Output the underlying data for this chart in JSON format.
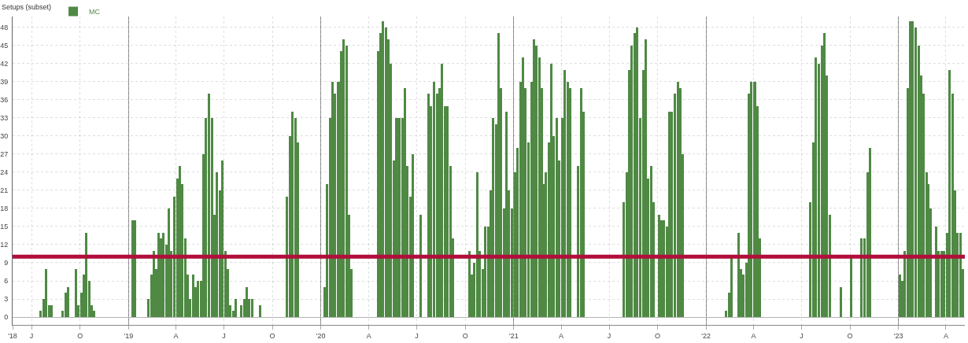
{
  "chart_data": {
    "type": "bar",
    "legend_title": "Setups (subset)",
    "legend": "top left",
    "grid": true,
    "x": [
      "2018-07-16",
      "2018-07-21",
      "2018-07-26",
      "2018-08-01",
      "2018-08-06",
      "2018-08-26",
      "2018-09-01",
      "2018-09-06",
      "2018-09-21",
      "2018-09-26",
      "2018-10-01",
      "2018-10-06",
      "2018-10-11",
      "2018-10-16",
      "2018-10-21",
      "2018-10-26",
      "2019-01-06",
      "2019-01-11",
      "2019-02-06",
      "2019-02-11",
      "2019-02-16",
      "2019-02-21",
      "2019-02-26",
      "2019-03-01",
      "2019-03-06",
      "2019-03-11",
      "2019-03-16",
      "2019-03-21",
      "2019-03-26",
      "2019-04-01",
      "2019-04-06",
      "2019-04-11",
      "2019-04-16",
      "2019-04-21",
      "2019-04-26",
      "2019-05-01",
      "2019-05-06",
      "2019-05-11",
      "2019-05-16",
      "2019-05-21",
      "2019-05-26",
      "2019-06-01",
      "2019-06-06",
      "2019-06-11",
      "2019-06-16",
      "2019-06-21",
      "2019-06-26",
      "2019-07-01",
      "2019-07-06",
      "2019-07-11",
      "2019-07-16",
      "2019-07-21",
      "2019-08-01",
      "2019-08-06",
      "2019-08-11",
      "2019-08-16",
      "2019-08-21",
      "2019-09-06",
      "2019-10-26",
      "2019-11-01",
      "2019-11-06",
      "2019-11-11",
      "2019-11-16",
      "2020-01-06",
      "2020-01-11",
      "2020-01-16",
      "2020-01-21",
      "2020-01-26",
      "2020-02-01",
      "2020-02-06",
      "2020-02-11",
      "2020-02-16",
      "2020-02-21",
      "2020-02-26",
      "2020-04-16",
      "2020-04-21",
      "2020-04-26",
      "2020-05-01",
      "2020-05-06",
      "2020-05-11",
      "2020-05-16",
      "2020-05-21",
      "2020-05-26",
      "2020-06-01",
      "2020-06-06",
      "2020-06-11",
      "2020-06-16",
      "2020-06-21",
      "2020-07-06",
      "2020-07-21",
      "2020-07-26",
      "2020-08-01",
      "2020-08-06",
      "2020-08-11",
      "2020-08-16",
      "2020-08-21",
      "2020-08-26",
      "2020-09-01",
      "2020-09-06",
      "2020-10-06",
      "2020-10-11",
      "2020-10-16",
      "2020-10-21",
      "2020-10-26",
      "2020-11-01",
      "2020-11-06",
      "2020-11-11",
      "2020-11-16",
      "2020-11-21",
      "2020-11-26",
      "2020-12-01",
      "2020-12-06",
      "2020-12-11",
      "2020-12-16",
      "2020-12-21",
      "2020-12-26",
      "2021-01-01",
      "2021-01-06",
      "2021-01-11",
      "2021-01-16",
      "2021-01-21",
      "2021-01-26",
      "2021-02-01",
      "2021-02-06",
      "2021-02-11",
      "2021-02-16",
      "2021-02-21",
      "2021-02-26",
      "2021-03-01",
      "2021-03-06",
      "2021-03-11",
      "2021-03-16",
      "2021-03-21",
      "2021-03-26",
      "2021-04-01",
      "2021-04-06",
      "2021-04-11",
      "2021-04-16",
      "2021-05-01",
      "2021-05-06",
      "2021-05-11",
      "2021-07-26",
      "2021-08-01",
      "2021-08-06",
      "2021-08-11",
      "2021-08-16",
      "2021-08-21",
      "2021-08-26",
      "2021-09-01",
      "2021-09-06",
      "2021-09-11",
      "2021-09-16",
      "2021-09-21",
      "2021-10-01",
      "2021-10-06",
      "2021-10-11",
      "2021-10-16",
      "2021-10-21",
      "2021-10-26",
      "2021-11-01",
      "2021-11-06",
      "2021-11-11",
      "2021-11-16",
      "2022-02-06",
      "2022-02-11",
      "2022-02-16",
      "2022-03-01",
      "2022-03-06",
      "2022-03-11",
      "2022-03-16",
      "2022-03-21",
      "2022-03-26",
      "2022-04-01",
      "2022-04-06",
      "2022-04-11",
      "2022-07-16",
      "2022-07-21",
      "2022-07-26",
      "2022-08-01",
      "2022-08-06",
      "2022-08-11",
      "2022-08-16",
      "2022-08-21",
      "2022-09-11",
      "2022-10-01",
      "2022-10-21",
      "2022-10-26",
      "2022-11-01",
      "2022-11-06",
      "2023-01-01",
      "2023-01-06",
      "2023-01-11",
      "2023-01-16",
      "2023-01-21",
      "2023-01-26",
      "2023-02-01",
      "2023-02-06",
      "2023-02-11",
      "2023-02-16",
      "2023-02-21",
      "2023-02-26",
      "2023-03-01",
      "2023-03-11",
      "2023-03-16",
      "2023-03-21",
      "2023-03-26",
      "2023-04-01",
      "2023-04-06",
      "2023-04-11",
      "2023-04-16",
      "2023-04-21",
      "2023-04-26",
      "2023-05-01"
    ],
    "series": [
      {
        "name": "MC",
        "color": "#4f8944",
        "values": [
          1,
          3,
          8,
          2,
          2,
          1,
          4,
          5,
          8,
          2,
          4,
          7,
          14,
          6,
          2,
          1,
          16,
          16,
          3,
          7,
          11,
          8,
          14,
          13,
          14,
          12,
          18,
          11,
          20,
          23,
          25,
          22,
          13,
          7,
          3,
          7,
          5,
          6,
          6,
          27,
          33,
          37,
          33,
          17,
          24,
          21,
          26,
          11,
          8,
          2,
          1,
          3,
          2,
          3,
          5,
          3,
          3,
          2,
          20,
          30,
          34,
          33,
          29,
          5,
          22,
          33,
          39,
          37,
          39,
          44,
          46,
          45,
          17,
          8,
          44,
          47,
          49,
          48,
          46,
          42,
          26,
          33,
          33,
          33,
          38,
          25,
          20,
          27,
          17,
          37,
          35,
          39,
          37,
          38,
          42,
          35,
          35,
          25,
          13,
          11,
          7,
          9,
          24,
          11,
          8,
          15,
          15,
          21,
          33,
          32,
          47,
          38,
          18,
          34,
          21,
          18,
          24,
          28,
          39,
          43,
          38,
          29,
          39,
          46,
          45,
          43,
          38,
          22,
          24,
          29,
          42,
          30,
          33,
          26,
          33,
          41,
          39,
          38,
          25,
          38,
          34,
          19,
          24,
          41,
          45,
          47,
          48,
          33,
          41,
          46,
          23,
          25,
          19,
          17,
          16,
          16,
          15,
          34,
          34,
          37,
          39,
          38,
          27,
          1,
          4,
          10,
          14,
          8,
          7,
          9,
          37,
          39,
          39,
          35,
          13,
          19,
          29,
          43,
          42,
          45,
          47,
          40,
          17,
          5,
          10,
          13,
          13,
          24,
          28,
          7,
          6,
          11,
          38,
          49,
          49,
          48,
          45,
          40,
          37,
          24,
          22,
          18,
          15,
          11,
          11,
          11,
          14,
          41,
          37,
          21,
          14,
          14,
          8
        ]
      }
    ],
    "xlim": [
      "2018-05-26",
      "2023-05-07"
    ],
    "xticks": [
      {
        "value": "2018-05-26",
        "label": "'18"
      },
      {
        "value": "2018-07-01",
        "label": "J"
      },
      {
        "value": "2018-10-01",
        "label": "O"
      },
      {
        "value": "2019-01-01",
        "label": "'19"
      },
      {
        "value": "2019-04-01",
        "label": "A"
      },
      {
        "value": "2019-07-01",
        "label": "J"
      },
      {
        "value": "2019-10-01",
        "label": "O"
      },
      {
        "value": "2020-01-01",
        "label": "'20"
      },
      {
        "value": "2020-04-01",
        "label": "A"
      },
      {
        "value": "2020-07-01",
        "label": "J"
      },
      {
        "value": "2020-10-01",
        "label": "O"
      },
      {
        "value": "2021-01-01",
        "label": "'21"
      },
      {
        "value": "2021-04-01",
        "label": "A"
      },
      {
        "value": "2021-07-01",
        "label": "J"
      },
      {
        "value": "2021-10-01",
        "label": "O"
      },
      {
        "value": "2022-01-01",
        "label": "'22"
      },
      {
        "value": "2022-04-01",
        "label": "A"
      },
      {
        "value": "2022-07-01",
        "label": "J"
      },
      {
        "value": "2022-10-01",
        "label": "O"
      },
      {
        "value": "2023-01-01",
        "label": "'23"
      },
      {
        "value": "2023-04-01",
        "label": "A"
      }
    ],
    "ylim": [
      -1.3,
      49.8
    ],
    "yticks": [
      0,
      3,
      6,
      9,
      12,
      15,
      18,
      21,
      24,
      27,
      30,
      33,
      36,
      39,
      42,
      45,
      48
    ],
    "ref_lines": [
      {
        "axis": "y",
        "value": 10,
        "color": "#b10f3b"
      }
    ]
  }
}
